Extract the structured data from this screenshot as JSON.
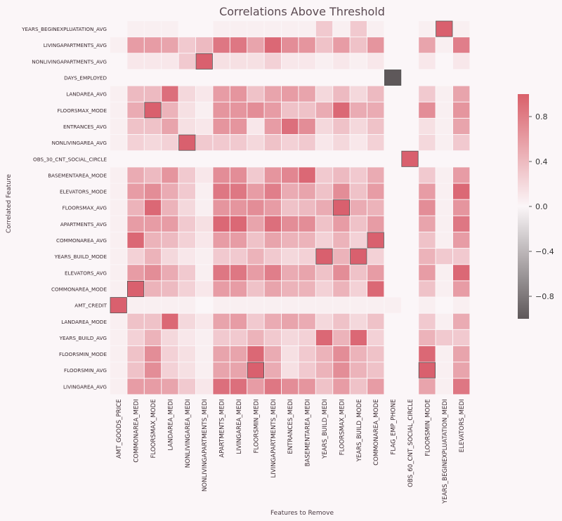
{
  "chart_data": {
    "type": "heatmap",
    "title": "Correlations Above Threshold",
    "xlabel": "Features to Remove",
    "ylabel": "Correlated Feature",
    "x_categories": [
      "AMT_GOODS_PRICE",
      "COMMONAREA_MEDI",
      "FLOORSMAX_MODE",
      "LANDAREA_MEDI",
      "NONLIVINGAREA_MEDI",
      "NONLIVINGAPARTMENTS_MEDI",
      "APARTMENTS_MEDI",
      "LIVINGAREA_MEDI",
      "FLOORSMIN_MEDI",
      "LIVINGAPARTMENTS_MEDI",
      "ENTRANCES_MEDI",
      "BASEMENTAREA_MEDI",
      "YEARS_BUILD_MEDI",
      "FLOORSMAX_MEDI",
      "YEARS_BUILD_MODE",
      "COMMONAREA_MODE",
      "FLAG_EMP_PHONE",
      "OBS_60_CNT_SOCIAL_CIRCLE",
      "FLOORSMIN_MODE",
      "YEARS_BEGINEXPLUATATION_MEDI",
      "ELEVATORS_MEDI"
    ],
    "y_categories": [
      "YEARS_BEGINEXPLUATATION_AVG",
      "LIVINGAPARTMENTS_AVG",
      "NONLIVINGAPARTMENTS_AVG",
      "DAYS_EMPLOYED",
      "LANDAREA_AVG",
      "FLOORSMAX_MODE",
      "ENTRANCES_AVG",
      "NONLIVINGAREA_AVG",
      "OBS_30_CNT_SOCIAL_CIRCLE",
      "BASEMENTAREA_MODE",
      "ELEVATORS_MODE",
      "FLOORSMAX_AVG",
      "APARTMENTS_AVG",
      "COMMONAREA_AVG",
      "YEARS_BUILD_MODE",
      "ELEVATORS_AVG",
      "COMMONAREA_MODE",
      "AMT_CREDIT",
      "LANDAREA_MODE",
      "YEARS_BUILD_AVG",
      "FLOORSMIN_MODE",
      "FLOORSMIN_AVG",
      "LIVINGAREA_AVG"
    ],
    "values": [
      [
        0.0,
        0.05,
        0.05,
        0.05,
        0.0,
        0.0,
        0.05,
        0.05,
        0.05,
        0.05,
        0.05,
        0.05,
        0.3,
        0.05,
        0.3,
        0.05,
        null,
        null,
        0.05,
        1.0,
        0.05
      ],
      [
        0.05,
        0.6,
        0.6,
        0.55,
        0.3,
        0.4,
        0.85,
        0.85,
        0.55,
        0.95,
        0.7,
        0.65,
        0.35,
        0.6,
        0.35,
        0.65,
        null,
        null,
        0.55,
        0.05,
        0.8
      ],
      [
        0.0,
        0.1,
        0.1,
        0.1,
        0.3,
        1.0,
        0.15,
        0.15,
        0.15,
        0.25,
        0.1,
        0.1,
        0.05,
        0.1,
        0.05,
        0.1,
        null,
        null,
        0.1,
        0.0,
        0.1
      ],
      [
        null,
        null,
        null,
        null,
        null,
        null,
        null,
        null,
        null,
        null,
        null,
        null,
        null,
        null,
        null,
        null,
        -1.0,
        null,
        null,
        null,
        null
      ],
      [
        0.05,
        0.4,
        0.4,
        0.9,
        0.2,
        0.1,
        0.6,
        0.65,
        0.35,
        0.55,
        0.6,
        0.55,
        0.2,
        0.4,
        0.2,
        0.4,
        null,
        null,
        0.3,
        0.05,
        0.55
      ],
      [
        0.05,
        0.5,
        1.0,
        0.45,
        0.15,
        0.05,
        0.65,
        0.65,
        0.7,
        0.6,
        0.35,
        0.35,
        0.5,
        0.95,
        0.5,
        0.5,
        null,
        null,
        0.7,
        0.05,
        0.65
      ],
      [
        0.05,
        0.35,
        0.35,
        0.55,
        0.15,
        0.1,
        0.65,
        0.65,
        0.1,
        0.6,
        0.9,
        0.7,
        0.2,
        0.35,
        0.2,
        0.35,
        null,
        null,
        0.15,
        0.05,
        0.55
      ],
      [
        0.05,
        0.25,
        0.2,
        0.25,
        1.0,
        0.3,
        0.3,
        0.3,
        0.2,
        0.35,
        0.25,
        0.3,
        0.1,
        0.2,
        0.1,
        0.25,
        null,
        null,
        0.2,
        0.05,
        0.3
      ],
      [
        null,
        null,
        null,
        null,
        null,
        null,
        null,
        null,
        null,
        null,
        null,
        null,
        null,
        null,
        null,
        null,
        null,
        1.0,
        null,
        null,
        null
      ],
      [
        0.05,
        0.5,
        0.4,
        0.65,
        0.3,
        0.1,
        0.7,
        0.7,
        0.3,
        0.65,
        0.75,
        0.95,
        0.3,
        0.4,
        0.3,
        0.5,
        null,
        null,
        0.3,
        0.05,
        0.6
      ],
      [
        0.05,
        0.6,
        0.7,
        0.5,
        0.3,
        0.05,
        0.85,
        0.85,
        0.6,
        0.8,
        0.5,
        0.55,
        0.35,
        0.7,
        0.35,
        0.6,
        null,
        null,
        0.6,
        0.05,
        0.95
      ],
      [
        0.05,
        0.45,
        0.95,
        0.45,
        0.2,
        0.05,
        0.65,
        0.65,
        0.7,
        0.6,
        0.35,
        0.4,
        0.5,
        1.0,
        0.5,
        0.45,
        null,
        null,
        0.7,
        0.05,
        0.65
      ],
      [
        0.05,
        0.6,
        0.6,
        0.6,
        0.3,
        0.15,
        0.95,
        0.95,
        0.55,
        0.9,
        0.7,
        0.7,
        0.35,
        0.6,
        0.35,
        0.6,
        null,
        null,
        0.55,
        0.05,
        0.85
      ],
      [
        0.05,
        0.95,
        0.45,
        0.4,
        0.25,
        0.1,
        0.6,
        0.6,
        0.35,
        0.55,
        0.45,
        0.45,
        0.25,
        0.45,
        0.25,
        1.0,
        null,
        null,
        0.35,
        0.05,
        0.6
      ],
      [
        0.05,
        0.25,
        0.45,
        0.2,
        0.1,
        0.05,
        0.3,
        0.3,
        0.45,
        0.3,
        0.2,
        0.25,
        1.0,
        0.45,
        1.0,
        0.25,
        null,
        null,
        0.45,
        0.3,
        0.3
      ],
      [
        0.05,
        0.6,
        0.7,
        0.5,
        0.3,
        0.05,
        0.85,
        0.85,
        0.6,
        0.8,
        0.5,
        0.55,
        0.35,
        0.7,
        0.35,
        0.6,
        null,
        null,
        0.6,
        0.05,
        0.95
      ],
      [
        0.05,
        1.0,
        0.45,
        0.4,
        0.25,
        0.1,
        0.6,
        0.6,
        0.35,
        0.55,
        0.45,
        0.45,
        0.25,
        0.45,
        0.25,
        0.95,
        null,
        null,
        0.35,
        0.05,
        0.6
      ],
      [
        1.0,
        0.05,
        0.05,
        0.05,
        0.05,
        0.0,
        0.05,
        0.05,
        0.05,
        0.05,
        0.05,
        0.05,
        0.05,
        0.05,
        0.05,
        0.05,
        0.05,
        null,
        0.05,
        0.0,
        0.05
      ],
      [
        0.05,
        0.35,
        0.35,
        0.95,
        0.2,
        0.1,
        0.55,
        0.6,
        0.3,
        0.5,
        0.55,
        0.5,
        0.2,
        0.35,
        0.2,
        0.35,
        null,
        null,
        0.3,
        0.05,
        0.5
      ],
      [
        0.05,
        0.25,
        0.45,
        0.2,
        0.1,
        0.05,
        0.3,
        0.3,
        0.45,
        0.3,
        0.2,
        0.25,
        0.95,
        0.45,
        0.95,
        0.25,
        null,
        null,
        0.45,
        0.3,
        0.3
      ],
      [
        0.05,
        0.35,
        0.7,
        0.25,
        0.15,
        0.05,
        0.55,
        0.55,
        0.95,
        0.5,
        0.15,
        0.3,
        0.45,
        0.7,
        0.45,
        0.35,
        null,
        null,
        0.95,
        0.05,
        0.55
      ],
      [
        0.05,
        0.35,
        0.7,
        0.25,
        0.15,
        0.05,
        0.55,
        0.55,
        1.0,
        0.5,
        0.15,
        0.3,
        0.45,
        0.7,
        0.45,
        0.35,
        null,
        null,
        1.0,
        0.05,
        0.55
      ],
      [
        0.05,
        0.6,
        0.6,
        0.55,
        0.3,
        0.1,
        0.9,
        0.9,
        0.6,
        0.85,
        0.7,
        0.65,
        0.35,
        0.6,
        0.35,
        0.6,
        null,
        null,
        0.55,
        0.05,
        0.85
      ]
    ],
    "colorbar": {
      "ticks": [
        0.8,
        0.4,
        0.0,
        -0.4,
        -0.8
      ],
      "tick_labels": [
        "0.8",
        "0.4",
        "0.0",
        "−0.4",
        "−0.8"
      ],
      "range": [
        -1,
        1
      ]
    },
    "colors": {
      "positive": "#d9606a",
      "negative": "#5e585a",
      "neutral": "#fbf6f8"
    },
    "grid": false
  }
}
